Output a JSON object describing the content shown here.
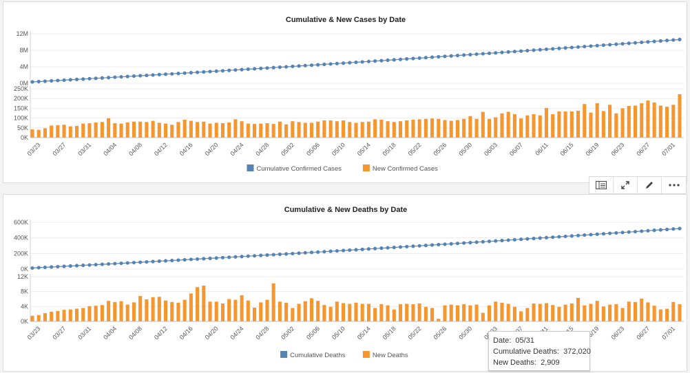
{
  "colors": {
    "cumulative": "#5584b4",
    "new": "#f5962e",
    "grid": "#ececec",
    "axis": "#555555"
  },
  "toolbar": {
    "icons": [
      "table-view-icon",
      "expand-icon",
      "pencil-icon",
      "more-icon"
    ]
  },
  "tooltip": {
    "date_label": "Date:",
    "date_value": "05/31",
    "cum_label": "Cumulative Deaths:",
    "cum_value": "372,020",
    "new_label": "New Deaths:",
    "new_value": "2,909"
  },
  "chart_data": [
    {
      "type": "line+bar",
      "title": "Cumulative & New Cases by Date",
      "legend_position": "bottom-center",
      "x_start": "03/22",
      "x_end": "07/01",
      "x_tick_labels": [
        "03/23",
        "03/27",
        "03/31",
        "04/04",
        "04/08",
        "04/12",
        "04/16",
        "04/20",
        "04/24",
        "04/28",
        "05/02",
        "05/06",
        "05/10",
        "05/14",
        "05/18",
        "05/22",
        "05/26",
        "05/30",
        "06/03",
        "06/07",
        "06/11",
        "06/15",
        "06/19",
        "06/23",
        "06/27",
        "07/01"
      ],
      "top_panel": {
        "y_tick_labels": [
          "0M",
          "4M",
          "8M",
          "12M"
        ],
        "y_ticks": [
          0,
          4000000,
          8000000,
          12000000
        ],
        "ylim": [
          0,
          12000000
        ],
        "series": {
          "name": "Cumulative Confirmed Cases",
          "start": 330000,
          "end": 10600000
        }
      },
      "bottom_panel": {
        "y_tick_labels": [
          "0K",
          "50K",
          "100K",
          "150K",
          "200K",
          "250K"
        ],
        "y_ticks": [
          0,
          50000,
          100000,
          150000,
          200000,
          250000
        ],
        "ylim": [
          0,
          250000
        ],
        "series": {
          "name": "New Confirmed Cases",
          "values": [
            42000,
            40000,
            48000,
            62000,
            64000,
            66000,
            58000,
            60000,
            72000,
            74000,
            78000,
            80000,
            99000,
            74000,
            72000,
            78000,
            82000,
            82000,
            80000,
            86000,
            76000,
            72000,
            66000,
            80000,
            92000,
            86000,
            80000,
            82000,
            72000,
            76000,
            74000,
            78000,
            94000,
            84000,
            72000,
            70000,
            72000,
            74000,
            70000,
            82000,
            68000,
            84000,
            80000,
            76000,
            76000,
            82000,
            88000,
            88000,
            84000,
            88000,
            80000,
            76000,
            80000,
            82000,
            94000,
            92000,
            84000,
            80000,
            84000,
            88000,
            92000,
            94000,
            96000,
            98000,
            96000,
            90000,
            86000,
            90000,
            96000,
            110000,
            96000,
            132000,
            96000,
            104000,
            124000,
            132000,
            120000,
            98000,
            114000,
            120000,
            114000,
            152000,
            120000,
            134000,
            134000,
            134000,
            138000,
            172000,
            128000,
            176000,
            136000,
            168000,
            124000,
            150000,
            162000,
            164000,
            176000,
            190000,
            180000,
            164000,
            158000,
            168000,
            222000
          ]
        }
      }
    },
    {
      "type": "line+bar",
      "title": "Cumulative & New Deaths by Date",
      "legend_position": "bottom-center",
      "x_start": "03/22",
      "x_end": "07/01",
      "x_tick_labels": [
        "03/23",
        "03/27",
        "03/31",
        "04/04",
        "04/08",
        "04/12",
        "04/16",
        "04/20",
        "04/24",
        "04/28",
        "05/02",
        "05/06",
        "05/10",
        "05/14",
        "05/18",
        "05/22",
        "05/26",
        "05/30",
        "06/03",
        "06/07",
        "06/11",
        "06/15",
        "06/19",
        "06/23",
        "06/27",
        "07/01"
      ],
      "top_panel": {
        "y_tick_labels": [
          "0K",
          "200K",
          "400K",
          "600K"
        ],
        "y_ticks": [
          0,
          200000,
          400000,
          600000
        ],
        "ylim": [
          0,
          600000
        ],
        "series": {
          "name": "Cumulative Deaths",
          "start": 14000,
          "end": 520000
        }
      },
      "bottom_panel": {
        "y_tick_labels": [
          "0K",
          "4K",
          "8K",
          "12K"
        ],
        "y_ticks": [
          0,
          4000,
          8000,
          12000
        ],
        "ylim": [
          0,
          12000
        ],
        "series": {
          "name": "New Deaths",
          "values": [
            1500,
            1700,
            2200,
            2600,
            2800,
            3100,
            3200,
            3400,
            3600,
            4100,
            4200,
            4400,
            5500,
            5200,
            5400,
            4500,
            5100,
            6800,
            5900,
            6500,
            6600,
            5600,
            5200,
            5000,
            5800,
            7500,
            9200,
            9600,
            5300,
            5300,
            4800,
            6000,
            5800,
            7000,
            5600,
            3700,
            5100,
            5800,
            10200,
            5300,
            5000,
            3600,
            4700,
            5400,
            6200,
            5500,
            4400,
            3900,
            5300,
            4900,
            4700,
            5000,
            4700,
            4700,
            3600,
            4600,
            4300,
            3200,
            4600,
            4700,
            4600,
            4800,
            3900,
            3600,
            700,
            4300,
            4500,
            4300,
            4600,
            4300,
            4500,
            2300,
            4300,
            5300,
            5000,
            4700,
            3900,
            2700,
            3600,
            4800,
            4700,
            4900,
            4400,
            3900,
            4500,
            4800,
            6300,
            4300,
            4700,
            5500,
            4000,
            4500,
            4600,
            3600,
            5300,
            5200,
            6100,
            5100,
            4200,
            3200,
            3400,
            5200,
            4600
          ]
        }
      }
    }
  ]
}
